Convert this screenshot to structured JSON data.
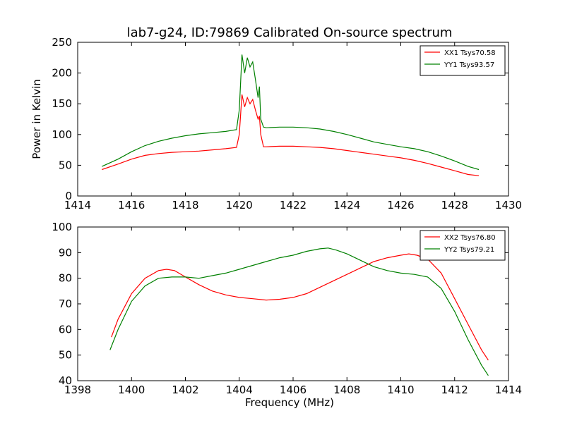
{
  "figure": {
    "title": "lab7-g24, ID:79869 Calibrated On-source spectrum",
    "ylabel": "Power in Kelvin",
    "xlabel": "Frequency (MHz)"
  },
  "chart_data": [
    {
      "type": "line",
      "xlim": [
        1414,
        1430
      ],
      "ylim": [
        0,
        250
      ],
      "xticks": [
        "1414",
        "1416",
        "1418",
        "1420",
        "1422",
        "1424",
        "1426",
        "1428",
        "1430"
      ],
      "yticks": [
        "0",
        "50",
        "100",
        "150",
        "200",
        "250"
      ],
      "legend_position": "top-right",
      "series": [
        {
          "name": "XX1 Tsys70.58",
          "color": "#ff0000",
          "x": [
            1414.9,
            1415.5,
            1416.0,
            1416.5,
            1417.0,
            1417.5,
            1418.0,
            1418.5,
            1419.0,
            1419.5,
            1419.9,
            1420.0,
            1420.1,
            1420.2,
            1420.3,
            1420.4,
            1420.5,
            1420.6,
            1420.7,
            1420.75,
            1420.8,
            1420.9,
            1421.0,
            1421.5,
            1422.0,
            1422.5,
            1423.0,
            1423.5,
            1424.0,
            1424.5,
            1425.0,
            1425.5,
            1426.0,
            1426.5,
            1427.0,
            1427.5,
            1428.0,
            1428.5,
            1428.9
          ],
          "y": [
            43,
            52,
            60,
            66,
            69,
            71,
            72,
            73,
            75,
            77,
            79,
            100,
            165,
            145,
            160,
            150,
            157,
            140,
            125,
            130,
            100,
            80,
            80,
            81,
            81,
            80,
            79,
            77,
            74,
            71,
            68,
            65,
            62,
            58,
            53,
            47,
            41,
            35,
            33
          ]
        },
        {
          "name": "YY1 Tsys93.57",
          "color": "#008000",
          "x": [
            1414.9,
            1415.5,
            1416.0,
            1416.5,
            1417.0,
            1417.5,
            1418.0,
            1418.5,
            1419.0,
            1419.5,
            1419.9,
            1420.0,
            1420.1,
            1420.2,
            1420.3,
            1420.4,
            1420.5,
            1420.6,
            1420.7,
            1420.75,
            1420.8,
            1420.9,
            1421.0,
            1421.5,
            1422.0,
            1422.5,
            1423.0,
            1423.5,
            1424.0,
            1424.5,
            1425.0,
            1425.5,
            1426.0,
            1426.5,
            1427.0,
            1427.5,
            1428.0,
            1428.5,
            1428.9
          ],
          "y": [
            48,
            60,
            72,
            82,
            89,
            94,
            98,
            101,
            103,
            105,
            108,
            140,
            230,
            200,
            225,
            210,
            218,
            190,
            160,
            178,
            125,
            112,
            111,
            112,
            112,
            111,
            109,
            105,
            100,
            94,
            88,
            84,
            80,
            77,
            72,
            65,
            57,
            48,
            43
          ]
        }
      ]
    },
    {
      "type": "line",
      "xlim": [
        1398,
        1414
      ],
      "ylim": [
        40,
        100
      ],
      "xticks": [
        "1398",
        "1400",
        "1402",
        "1404",
        "1406",
        "1408",
        "1410",
        "1412",
        "1414"
      ],
      "yticks": [
        "40",
        "50",
        "60",
        "70",
        "80",
        "90",
        "100"
      ],
      "legend_position": "top-right",
      "series": [
        {
          "name": "XX2 Tsys76.80",
          "color": "#ff0000",
          "x": [
            1399.25,
            1399.5,
            1400.0,
            1400.5,
            1401.0,
            1401.3,
            1401.6,
            1402.0,
            1402.5,
            1403.0,
            1403.5,
            1404.0,
            1404.5,
            1405.0,
            1405.5,
            1406.0,
            1406.5,
            1407.0,
            1407.5,
            1408.0,
            1408.5,
            1409.0,
            1409.5,
            1410.0,
            1410.3,
            1410.6,
            1411.0,
            1411.5,
            1412.0,
            1412.5,
            1413.0,
            1413.25
          ],
          "y": [
            57,
            64,
            74,
            80,
            83,
            83.5,
            83,
            80.5,
            77.5,
            75,
            73.5,
            72.5,
            72,
            71.5,
            71.8,
            72.5,
            74,
            76.5,
            79,
            81.5,
            84,
            86.5,
            88,
            89,
            89.5,
            89,
            87.5,
            82,
            72,
            62,
            52,
            48
          ]
        },
        {
          "name": "YY2 Tsys79.21",
          "color": "#008000",
          "x": [
            1399.2,
            1399.5,
            1400.0,
            1400.5,
            1401.0,
            1401.5,
            1402.0,
            1402.5,
            1403.0,
            1403.5,
            1404.0,
            1404.5,
            1405.0,
            1405.5,
            1406.0,
            1406.5,
            1407.0,
            1407.3,
            1407.6,
            1408.0,
            1408.5,
            1409.0,
            1409.5,
            1410.0,
            1410.5,
            1411.0,
            1411.5,
            1412.0,
            1412.5,
            1413.0,
            1413.25
          ],
          "y": [
            52,
            60,
            71,
            77,
            80,
            80.5,
            80.5,
            80,
            81,
            82,
            83.5,
            85,
            86.5,
            88,
            89,
            90.5,
            91.5,
            91.8,
            91,
            89.5,
            87,
            84.5,
            83,
            82,
            81.5,
            80.5,
            76,
            67,
            56,
            46,
            42
          ]
        }
      ]
    }
  ]
}
